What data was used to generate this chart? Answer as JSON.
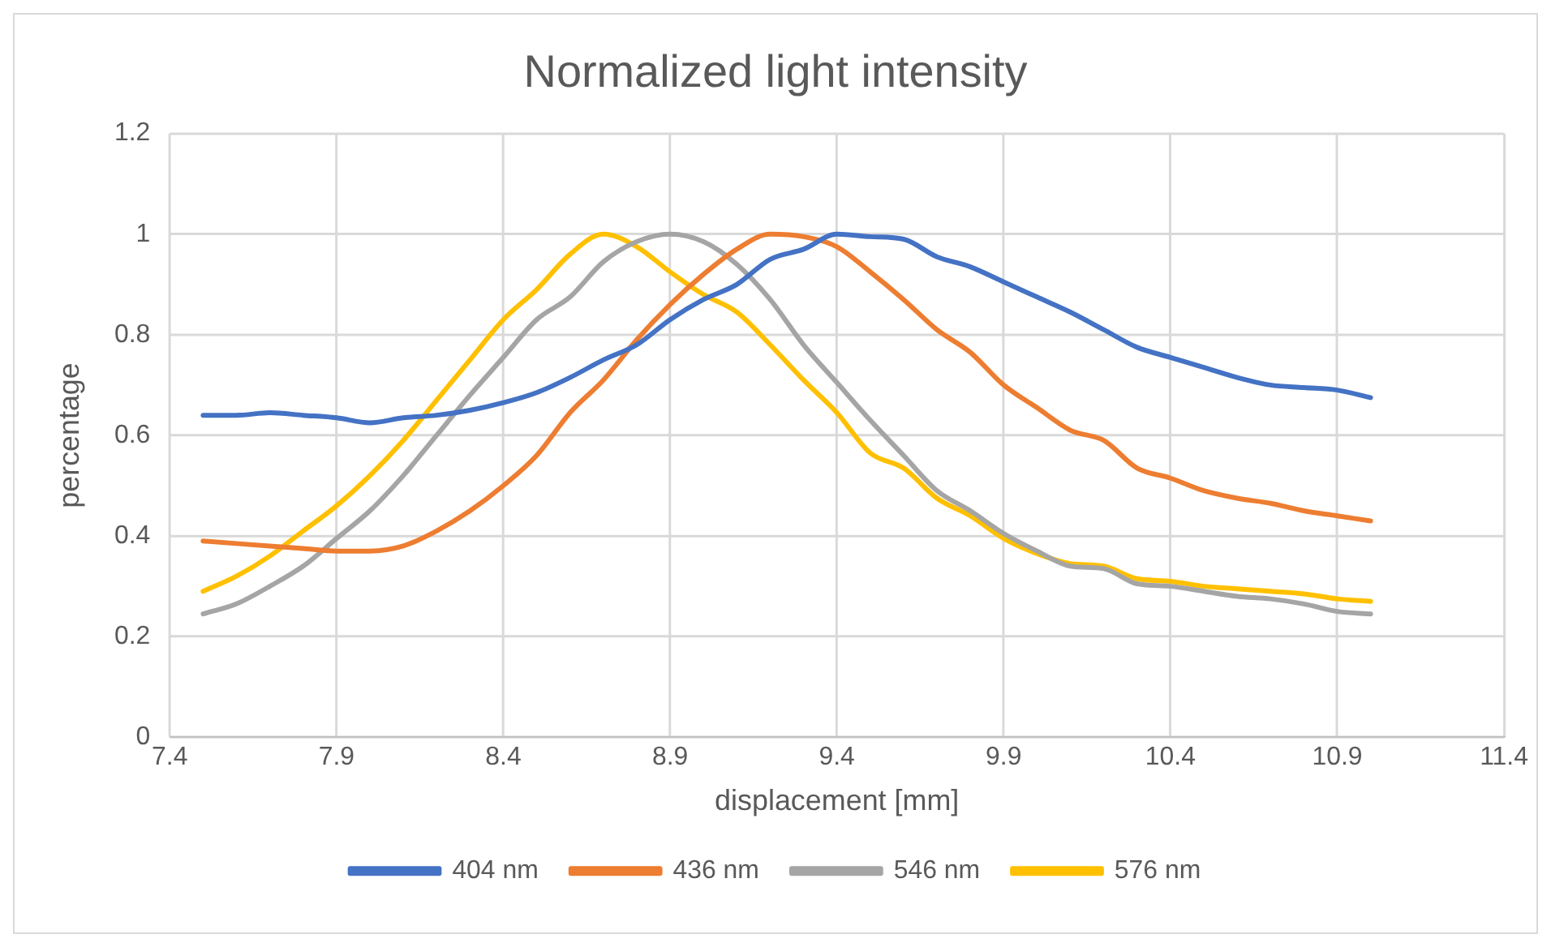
{
  "chart_data": {
    "type": "line",
    "title": "Normalized light intensity",
    "xlabel": "displacement [mm]",
    "ylabel": "percentage",
    "x": [
      7.5,
      7.6,
      7.7,
      7.8,
      7.9,
      8.0,
      8.1,
      8.2,
      8.3,
      8.4,
      8.5,
      8.6,
      8.7,
      8.8,
      8.9,
      9.0,
      9.1,
      9.2,
      9.3,
      9.4,
      9.5,
      9.6,
      9.7,
      9.8,
      9.9,
      10.0,
      10.1,
      10.2,
      10.3,
      10.4,
      10.5,
      10.6,
      10.7,
      10.8,
      10.9,
      11.0
    ],
    "series": [
      {
        "name": "404 nm",
        "color": "#4472c4",
        "values": [
          0.64,
          0.64,
          0.645,
          0.64,
          0.635,
          0.625,
          0.635,
          0.64,
          0.65,
          0.665,
          0.685,
          0.715,
          0.75,
          0.78,
          0.83,
          0.87,
          0.9,
          0.95,
          0.97,
          1.0,
          0.995,
          0.99,
          0.955,
          0.935,
          0.905,
          0.875,
          0.845,
          0.81,
          0.775,
          0.755,
          0.735,
          0.715,
          0.7,
          0.695,
          0.69,
          0.675
        ]
      },
      {
        "name": "436 nm",
        "color": "#ed7d31",
        "values": [
          0.39,
          0.385,
          0.38,
          0.375,
          0.37,
          0.37,
          0.38,
          0.41,
          0.45,
          0.5,
          0.56,
          0.645,
          0.71,
          0.79,
          0.86,
          0.92,
          0.97,
          1.0,
          0.995,
          0.975,
          0.925,
          0.87,
          0.81,
          0.765,
          0.7,
          0.655,
          0.61,
          0.59,
          0.535,
          0.515,
          0.49,
          0.475,
          0.465,
          0.45,
          0.44,
          0.43
        ]
      },
      {
        "name": "546 nm",
        "color": "#a5a5a5",
        "values": [
          0.245,
          0.265,
          0.3,
          0.34,
          0.395,
          0.45,
          0.52,
          0.6,
          0.68,
          0.755,
          0.83,
          0.875,
          0.945,
          0.985,
          1.0,
          0.985,
          0.94,
          0.87,
          0.78,
          0.705,
          0.63,
          0.56,
          0.49,
          0.45,
          0.405,
          0.37,
          0.34,
          0.335,
          0.305,
          0.3,
          0.29,
          0.28,
          0.275,
          0.265,
          0.25,
          0.245
        ]
      },
      {
        "name": "576 nm",
        "color": "#ffc000",
        "values": [
          0.29,
          0.32,
          0.36,
          0.41,
          0.46,
          0.52,
          0.59,
          0.67,
          0.75,
          0.83,
          0.89,
          0.96,
          1.0,
          0.975,
          0.925,
          0.88,
          0.845,
          0.78,
          0.71,
          0.645,
          0.565,
          0.535,
          0.475,
          0.44,
          0.395,
          0.365,
          0.345,
          0.34,
          0.315,
          0.31,
          0.3,
          0.295,
          0.29,
          0.285,
          0.275,
          0.27
        ]
      }
    ],
    "xlim": [
      7.4,
      11.4
    ],
    "xticks": [
      7.4,
      7.9,
      8.4,
      8.9,
      9.4,
      9.9,
      10.4,
      10.9,
      11.4
    ],
    "ylim": [
      0,
      1.2
    ],
    "yticks": [
      0,
      0.2,
      0.4,
      0.6,
      0.8,
      1,
      1.2
    ],
    "grid": true,
    "legend": "bottom",
    "marker": "none",
    "line_style": "solid"
  }
}
